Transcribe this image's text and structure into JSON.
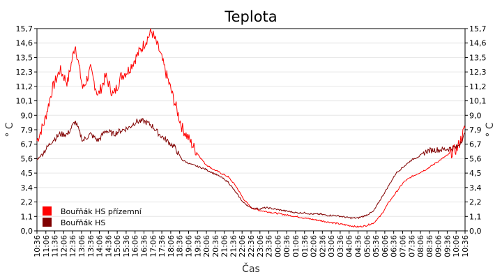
{
  "chart_data": {
    "type": "line",
    "title": "Teplota",
    "xlabel": "Čas",
    "ylabel": "° C",
    "ylim": [
      0,
      15.7
    ],
    "y_ticks": [
      "0,0",
      "1,1",
      "2,2",
      "3,4",
      "4,5",
      "5,6",
      "6,7",
      "7,9",
      "9,0",
      "10,1",
      "11,2",
      "12,3",
      "13,5",
      "14,6",
      "15,7"
    ],
    "x_ticks": [
      "10:36",
      "11:06",
      "11:36",
      "12:06",
      "12:36",
      "13:06",
      "13:36",
      "14:06",
      "14:36",
      "15:06",
      "15:36",
      "16:06",
      "16:36",
      "17:06",
      "17:36",
      "18:06",
      "18:36",
      "19:06",
      "19:36",
      "20:06",
      "20:36",
      "21:06",
      "21:36",
      "22:06",
      "22:36",
      "23:06",
      "23:36",
      "00:06",
      "00:36",
      "01:06",
      "01:36",
      "02:06",
      "02:36",
      "03:06",
      "03:36",
      "04:06",
      "04:36",
      "05:06",
      "05:36",
      "06:06",
      "06:36",
      "07:06",
      "07:36",
      "08:06",
      "08:36",
      "09:06",
      "09:36",
      "10:06",
      "10:36"
    ],
    "grid": true,
    "legend_position": "bottom-left",
    "series": [
      {
        "name": "Bouřňák HS přízemní",
        "color": "#ff0000",
        "values": [
          7.0,
          8.5,
          11.0,
          12.5,
          11.5,
          14.5,
          11.0,
          12.5,
          10.5,
          12.0,
          10.5,
          12.0,
          12.5,
          13.5,
          14.5,
          15.5,
          14.0,
          12.0,
          10.0,
          8.0,
          7.0,
          6.0,
          5.2,
          4.8,
          4.5,
          4.2,
          3.5,
          2.5,
          1.8,
          1.6,
          1.5,
          1.4,
          1.3,
          1.2,
          1.1,
          1.0,
          0.9,
          0.8,
          0.7,
          0.6,
          0.5,
          0.4,
          0.3,
          0.4,
          0.6,
          1.2,
          2.2,
          3.0,
          3.8,
          4.2,
          4.5,
          4.8,
          5.2,
          5.6,
          6.0,
          6.4,
          8.0
        ]
      },
      {
        "name": "Bouřňák HS",
        "color": "#800000",
        "values": [
          5.5,
          6.2,
          7.0,
          7.5,
          7.5,
          8.5,
          7.0,
          7.5,
          7.0,
          7.8,
          7.5,
          7.8,
          8.0,
          8.5,
          8.5,
          8.2,
          7.5,
          7.0,
          6.5,
          5.5,
          5.2,
          5.0,
          4.8,
          4.5,
          4.2,
          3.8,
          3.0,
          2.2,
          1.8,
          1.7,
          1.8,
          1.7,
          1.6,
          1.5,
          1.4,
          1.4,
          1.3,
          1.3,
          1.2,
          1.2,
          1.1,
          1.0,
          1.0,
          1.2,
          1.5,
          2.5,
          3.5,
          4.5,
          5.0,
          5.5,
          5.8,
          6.2,
          6.3,
          6.3,
          6.4,
          6.5,
          7.5
        ]
      }
    ]
  }
}
